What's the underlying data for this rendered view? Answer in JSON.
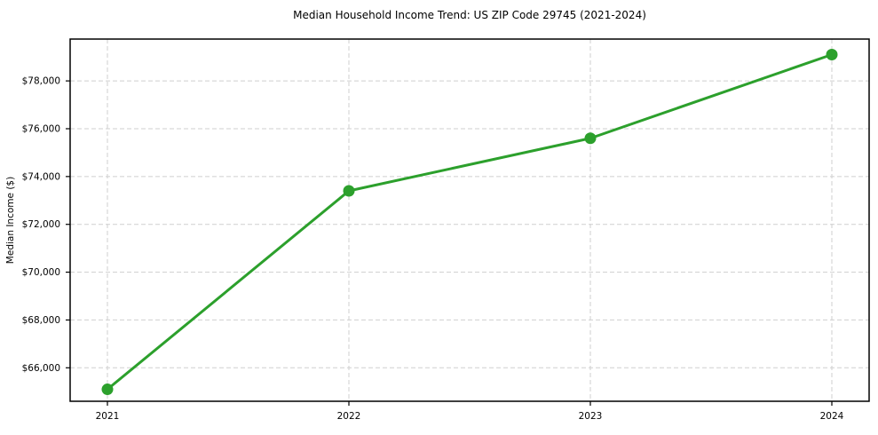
{
  "chart_data": {
    "type": "line",
    "title": "Median Household Income Trend: US ZIP Code 29745 (2021-2024)",
    "xlabel": "",
    "ylabel": "Median Income ($)",
    "categories": [
      "2021",
      "2022",
      "2023",
      "2024"
    ],
    "series": [
      {
        "name": "Median Household Income",
        "values": [
          65100,
          73400,
          75600,
          79100
        ]
      }
    ],
    "ylim": [
      64600,
      79750
    ],
    "yticks": [
      66000,
      68000,
      70000,
      72000,
      74000,
      76000,
      78000
    ],
    "ytick_prefix": "$",
    "grid": true,
    "grid_style": "dashed",
    "legend_position": "none",
    "line_color": "#2ca02c",
    "marker_color": "#2ca02c",
    "marker_shape": "circle",
    "grid_color": "#cfcfcf",
    "axis_color": "#000000",
    "text_color": "#000000",
    "background_color": "#ffffff"
  }
}
